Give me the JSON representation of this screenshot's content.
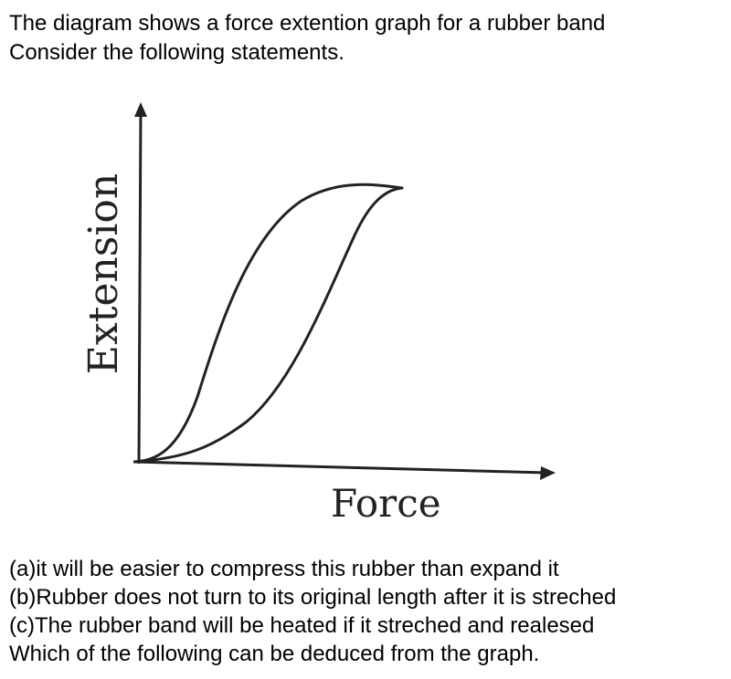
{
  "question": {
    "line1": "The diagram shows a force extention graph for a rubber band",
    "line2": "Consider the following statements."
  },
  "diagram": {
    "y_axis_label": "Extension",
    "x_axis_label": "Force"
  },
  "statements": {
    "a": "(a)it will be easier to compress this rubber than expand it",
    "b": "(b)Rubber does not turn to its original length after it is streched",
    "c": "(c)The rubber band will be heated if it streched and realesed",
    "prompt": "Which of the following can be deduced from the graph."
  },
  "colors": {
    "text": "#000000",
    "diagram_ink": "#222222"
  }
}
